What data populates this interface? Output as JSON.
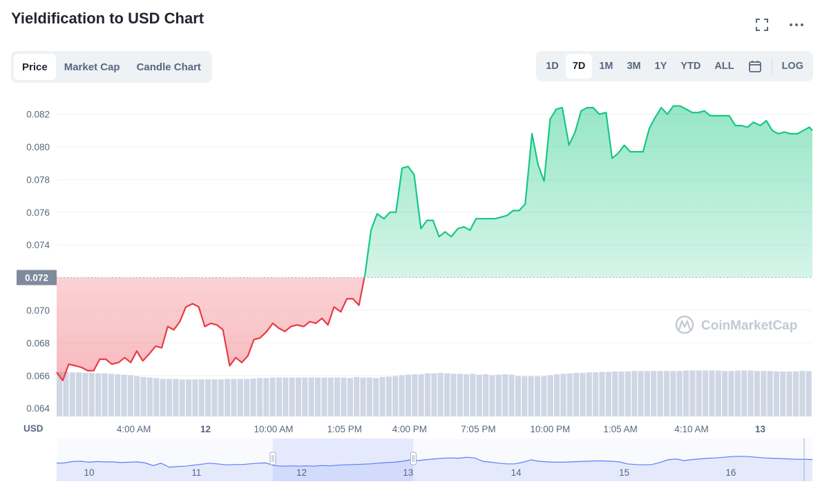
{
  "header": {
    "title": "Yieldification to USD Chart"
  },
  "icons": {
    "fullscreen": "fullscreen-icon",
    "more": "more-icon",
    "calendar": "calendar-icon",
    "logo": "coinmarketcap-logo-icon"
  },
  "tabs": [
    {
      "label": "Price",
      "active": true
    },
    {
      "label": "Market Cap",
      "active": false
    },
    {
      "label": "Candle Chart",
      "active": false
    }
  ],
  "ranges": [
    {
      "label": "1D",
      "active": false
    },
    {
      "label": "7D",
      "active": true
    },
    {
      "label": "1M",
      "active": false
    },
    {
      "label": "3M",
      "active": false
    },
    {
      "label": "1Y",
      "active": false
    },
    {
      "label": "YTD",
      "active": false
    },
    {
      "label": "ALL",
      "active": false
    }
  ],
  "log_label": "LOG",
  "watermark": "CoinMarketCap",
  "colors": {
    "up": "#16c784",
    "down": "#ea3943",
    "volume": "#cfd6e4",
    "navigator": "#5c7cfa"
  },
  "chart_data": {
    "type": "area",
    "ylabel": "USD",
    "baseline": 0.072,
    "baseline_label": "0.072",
    "ylim": [
      0.0635,
      0.0835
    ],
    "y_ticks": [
      "0.082",
      "0.080",
      "0.078",
      "0.076",
      "0.074",
      "0.072",
      "0.070",
      "0.068",
      "0.066",
      "0.064"
    ],
    "x_ticks": [
      "4:00 AM",
      "12",
      "10:00 AM",
      "1:05 PM",
      "4:00 PM",
      "7:05 PM",
      "10:00 PM",
      "1:05 AM",
      "4:10 AM",
      "13"
    ],
    "x_tick_pos": [
      0.102,
      0.197,
      0.287,
      0.381,
      0.467,
      0.558,
      0.653,
      0.746,
      0.84,
      0.931
    ],
    "x": [
      0,
      0.008,
      0.016,
      0.025,
      0.033,
      0.041,
      0.049,
      0.057,
      0.065,
      0.073,
      0.082,
      0.09,
      0.098,
      0.106,
      0.114,
      0.122,
      0.131,
      0.139,
      0.147,
      0.155,
      0.163,
      0.171,
      0.18,
      0.188,
      0.196,
      0.204,
      0.212,
      0.22,
      0.229,
      0.237,
      0.245,
      0.253,
      0.261,
      0.269,
      0.278,
      0.286,
      0.294,
      0.302,
      0.31,
      0.318,
      0.327,
      0.335,
      0.343,
      0.351,
      0.359,
      0.367,
      0.376,
      0.384,
      0.392,
      0.4,
      0.408,
      0.416,
      0.424,
      0.433,
      0.441,
      0.449,
      0.457,
      0.465,
      0.473,
      0.482,
      0.49,
      0.498,
      0.506,
      0.514,
      0.522,
      0.531,
      0.539,
      0.547,
      0.555,
      0.563,
      0.571,
      0.58,
      0.588,
      0.596,
      0.604,
      0.612,
      0.62,
      0.629,
      0.637,
      0.645,
      0.653,
      0.661,
      0.669,
      0.678,
      0.686,
      0.694,
      0.702,
      0.71,
      0.718,
      0.727,
      0.735,
      0.743,
      0.751,
      0.759,
      0.767,
      0.776,
      0.784,
      0.792,
      0.8,
      0.808,
      0.816,
      0.825,
      0.833,
      0.841,
      0.849,
      0.857,
      0.865,
      0.873,
      0.882,
      0.89,
      0.898,
      0.906,
      0.914,
      0.922,
      0.931,
      0.939,
      0.947,
      0.955,
      0.963,
      0.971,
      0.98,
      0.988,
      0.996,
      1.0
    ],
    "values": [
      0.0662,
      0.0657,
      0.0667,
      0.0666,
      0.0665,
      0.0663,
      0.0663,
      0.067,
      0.067,
      0.0667,
      0.0668,
      0.0671,
      0.0668,
      0.0675,
      0.0669,
      0.0673,
      0.0678,
      0.0677,
      0.069,
      0.0688,
      0.0693,
      0.0702,
      0.0704,
      0.0702,
      0.069,
      0.0692,
      0.0691,
      0.0688,
      0.0666,
      0.0671,
      0.0668,
      0.0672,
      0.0682,
      0.0683,
      0.0687,
      0.0692,
      0.0689,
      0.0687,
      0.069,
      0.0691,
      0.069,
      0.0693,
      0.0692,
      0.0695,
      0.0691,
      0.0702,
      0.0699,
      0.0707,
      0.0707,
      0.0703,
      0.0722,
      0.0749,
      0.0759,
      0.0756,
      0.076,
      0.076,
      0.0787,
      0.0788,
      0.0783,
      0.075,
      0.0755,
      0.0755,
      0.0745,
      0.0748,
      0.0745,
      0.075,
      0.0751,
      0.0749,
      0.0756,
      0.0756,
      0.0756,
      0.0756,
      0.0757,
      0.0758,
      0.0761,
      0.0761,
      0.0765,
      0.0808,
      0.0789,
      0.0779,
      0.0817,
      0.0823,
      0.0824,
      0.0801,
      0.0809,
      0.0822,
      0.0824,
      0.0824,
      0.082,
      0.0821,
      0.0793,
      0.0796,
      0.0801,
      0.0797,
      0.0797,
      0.0797,
      0.0811,
      0.0818,
      0.0824,
      0.082,
      0.0825,
      0.0825,
      0.0823,
      0.0821,
      0.0821,
      0.0822,
      0.0819,
      0.0819,
      0.0819,
      0.0819,
      0.0813,
      0.0813,
      0.0812,
      0.0815,
      0.0813,
      0.0816,
      0.081,
      0.0808,
      0.0809,
      0.0808,
      0.0808,
      0.081,
      0.0812,
      0.081
    ],
    "volume_levels": [
      0.95,
      0.95,
      0.94,
      0.94,
      0.93,
      0.93,
      0.92,
      0.92,
      0.91,
      0.9,
      0.89,
      0.88,
      0.86,
      0.84,
      0.83,
      0.82,
      0.8,
      0.8,
      0.8,
      0.79,
      0.79,
      0.79,
      0.79,
      0.79,
      0.79,
      0.79,
      0.8,
      0.8,
      0.8,
      0.8,
      0.81,
      0.82,
      0.82,
      0.83,
      0.83,
      0.83,
      0.83,
      0.83,
      0.83,
      0.83,
      0.83,
      0.83,
      0.83,
      0.83,
      0.83,
      0.82,
      0.84,
      0.83,
      0.83,
      0.82,
      0.84,
      0.85,
      0.86,
      0.88,
      0.89,
      0.9,
      0.9,
      0.92,
      0.92,
      0.93,
      0.92,
      0.91,
      0.91,
      0.9,
      0.91,
      0.89,
      0.9,
      0.88,
      0.89,
      0.9,
      0.89,
      0.86,
      0.86,
      0.86,
      0.86,
      0.86,
      0.88,
      0.9,
      0.91,
      0.92,
      0.93,
      0.93,
      0.94,
      0.94,
      0.95,
      0.95,
      0.96,
      0.96,
      0.96,
      0.97,
      0.97,
      0.97,
      0.97,
      0.97,
      0.97,
      0.97,
      0.97,
      0.98,
      0.98,
      0.98,
      0.98,
      0.98,
      0.98,
      0.97,
      0.97,
      0.98,
      0.98,
      0.98,
      0.97,
      0.97,
      0.97,
      0.96,
      0.96,
      0.96,
      0.96,
      0.97,
      0.97
    ],
    "navigator": {
      "labels": [
        "10",
        "11",
        "12",
        "13",
        "14",
        "15",
        "16"
      ],
      "label_pos": [
        0.043,
        0.185,
        0.324,
        0.465,
        0.608,
        0.751,
        0.892
      ],
      "selection": [
        0.286,
        0.472
      ],
      "values": [
        0.42,
        0.43,
        0.47,
        0.48,
        0.45,
        0.47,
        0.46,
        0.46,
        0.44,
        0.45,
        0.46,
        0.43,
        0.35,
        0.42,
        0.3,
        0.32,
        0.33,
        0.36,
        0.39,
        0.42,
        0.4,
        0.37,
        0.38,
        0.38,
        0.4,
        0.42,
        0.43,
        0.35,
        0.33,
        0.34,
        0.33,
        0.34,
        0.33,
        0.35,
        0.34,
        0.36,
        0.37,
        0.38,
        0.39,
        0.4,
        0.42,
        0.44,
        0.45,
        0.48,
        0.52,
        0.5,
        0.53,
        0.55,
        0.57,
        0.58,
        0.57,
        0.6,
        0.58,
        0.48,
        0.45,
        0.42,
        0.4,
        0.4,
        0.45,
        0.52,
        0.48,
        0.46,
        0.45,
        0.45,
        0.46,
        0.47,
        0.48,
        0.49,
        0.49,
        0.48,
        0.46,
        0.4,
        0.38,
        0.37,
        0.38,
        0.44,
        0.52,
        0.55,
        0.5,
        0.53,
        0.55,
        0.57,
        0.58,
        0.6,
        0.62,
        0.63,
        0.62,
        0.6,
        0.58,
        0.57,
        0.56,
        0.55,
        0.54,
        0.54,
        0.53
      ]
    }
  }
}
